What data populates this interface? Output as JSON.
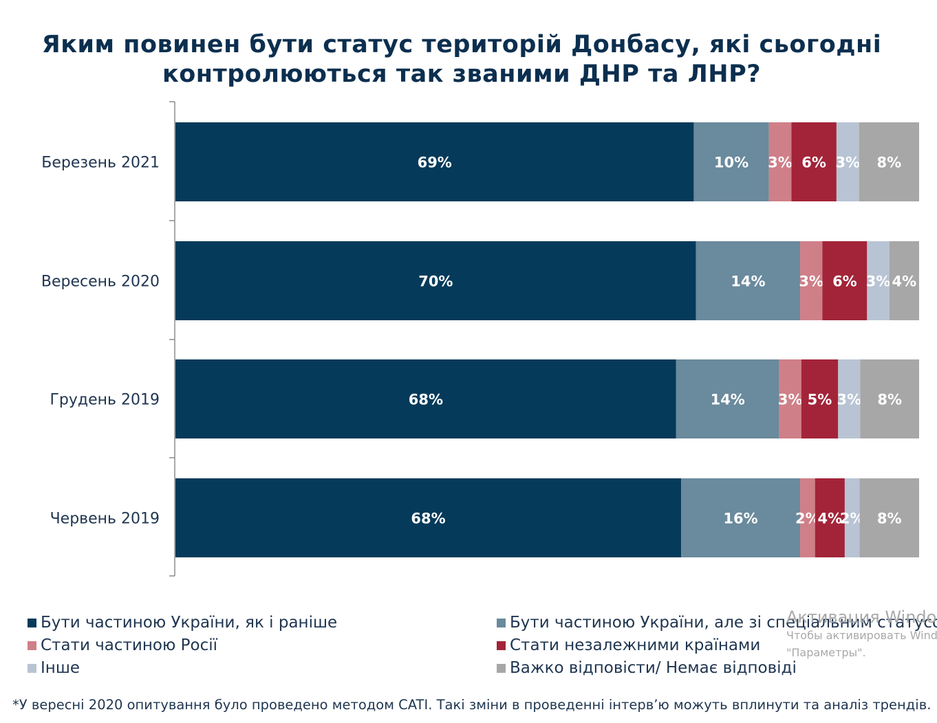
{
  "chart_data": {
    "type": "bar",
    "orientation": "horizontal",
    "stacked": true,
    "title": [
      "Яким повинен бути статус територій Донбасу, які сьогодні",
      "контролюються так званими ДНР та ЛНР?"
    ],
    "categories": [
      "Березень 2021",
      "Вересень 2020",
      "Грудень 2019",
      "Червень 2019"
    ],
    "series": [
      {
        "name": "Бути частиною України, як і раніше",
        "color": "#053a5a",
        "values": [
          69,
          70,
          68,
          68
        ],
        "labels": [
          "69%",
          "70%",
          "68%",
          "68%"
        ]
      },
      {
        "name": "Бути частиною України, але зі спеціальним статусом",
        "color": "#6a8a9d",
        "values": [
          10,
          14,
          14,
          16
        ],
        "labels": [
          "10%",
          "14%",
          "14%",
          "16%"
        ]
      },
      {
        "name": "Стати частиною Росії",
        "color": "#cf7f88",
        "values": [
          3,
          3,
          3,
          2
        ],
        "labels": [
          "3%",
          "3%",
          "3%",
          "2%"
        ]
      },
      {
        "name": "Стати незалежними країнами",
        "color": "#a32438",
        "values": [
          6,
          6,
          5,
          4
        ],
        "labels": [
          "6%",
          "6%",
          "5%",
          "4%"
        ]
      },
      {
        "name": "Інше",
        "color": "#b8c4d4",
        "values": [
          3,
          3,
          3,
          2
        ],
        "labels": [
          "3%",
          "3%",
          "3%",
          "2%"
        ]
      },
      {
        "name": "Важко відповісти/ Немає відповіді",
        "color": "#a7a7a7",
        "values": [
          8,
          4,
          8,
          8
        ],
        "labels": [
          "8%",
          "4%",
          "8%",
          "8%"
        ]
      }
    ],
    "legend_position": "bottom",
    "grid": false
  },
  "footnote": "*У вересні 2020 опитування було проведено методом CATI. Такі зміни в проведенні інтерв’ю можуть вплинути та аналіз трендів.",
  "watermark": {
    "line1": "Активация Window",
    "line2": "Чтобы активировать Windo",
    "line3": "\"Параметры\"."
  }
}
